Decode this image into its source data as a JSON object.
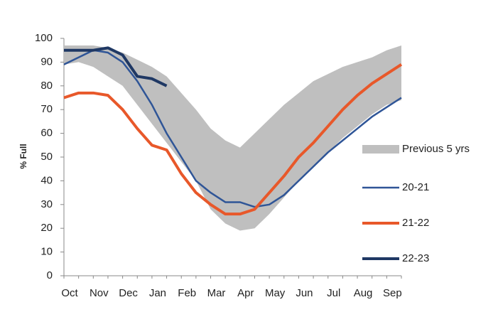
{
  "chart_data": {
    "type": "line",
    "y_label": "% Full",
    "categories": [
      "Oct",
      null,
      "Nov",
      null,
      "Dec",
      null,
      "Jan",
      null,
      "Feb",
      null,
      "Mar",
      null,
      "Apr",
      null,
      "May",
      null,
      "Jun",
      null,
      "Jul",
      null,
      "Aug",
      null,
      "Sep",
      null
    ],
    "ylim": [
      0,
      100
    ],
    "yticks": [
      0,
      10,
      20,
      30,
      40,
      50,
      60,
      70,
      80,
      90,
      100
    ],
    "legend": "right",
    "series": [
      {
        "name": "Previous 5 yrs",
        "color": "#bfbfbf",
        "upper": [
          97,
          97,
          97,
          96,
          94,
          91,
          88,
          84,
          77,
          70,
          62,
          57,
          54,
          60,
          66,
          72,
          77,
          82,
          85,
          88,
          90,
          92,
          95,
          97
        ],
        "lower": [
          89,
          90,
          88,
          84,
          80,
          72,
          64,
          56,
          48,
          40,
          28,
          22,
          19,
          20,
          26,
          33,
          40,
          46,
          52,
          58,
          63,
          68,
          72,
          74
        ]
      },
      {
        "name": "20-21",
        "color": "#2f5597",
        "width": 2.5,
        "values": [
          89,
          92,
          95,
          94,
          90,
          82,
          72,
          60,
          50,
          40,
          35,
          31,
          31,
          29,
          30,
          34,
          40,
          46,
          52,
          57,
          62,
          67,
          71,
          75
        ]
      },
      {
        "name": "21-22",
        "color": "#e8582a",
        "width": 4,
        "values": [
          75,
          77,
          77,
          76,
          70,
          62,
          55,
          53,
          43,
          35,
          30,
          26,
          26,
          28,
          35,
          42,
          50,
          56,
          63,
          70,
          76,
          81,
          85,
          89
        ]
      },
      {
        "name": "22-23",
        "color": "#1f3864",
        "width": 4,
        "values": [
          95,
          95,
          95,
          96,
          93,
          84,
          83,
          80,
          null,
          null,
          null,
          null,
          null,
          null,
          null,
          null,
          null,
          null,
          null,
          null,
          null,
          null,
          null,
          null
        ]
      }
    ]
  }
}
